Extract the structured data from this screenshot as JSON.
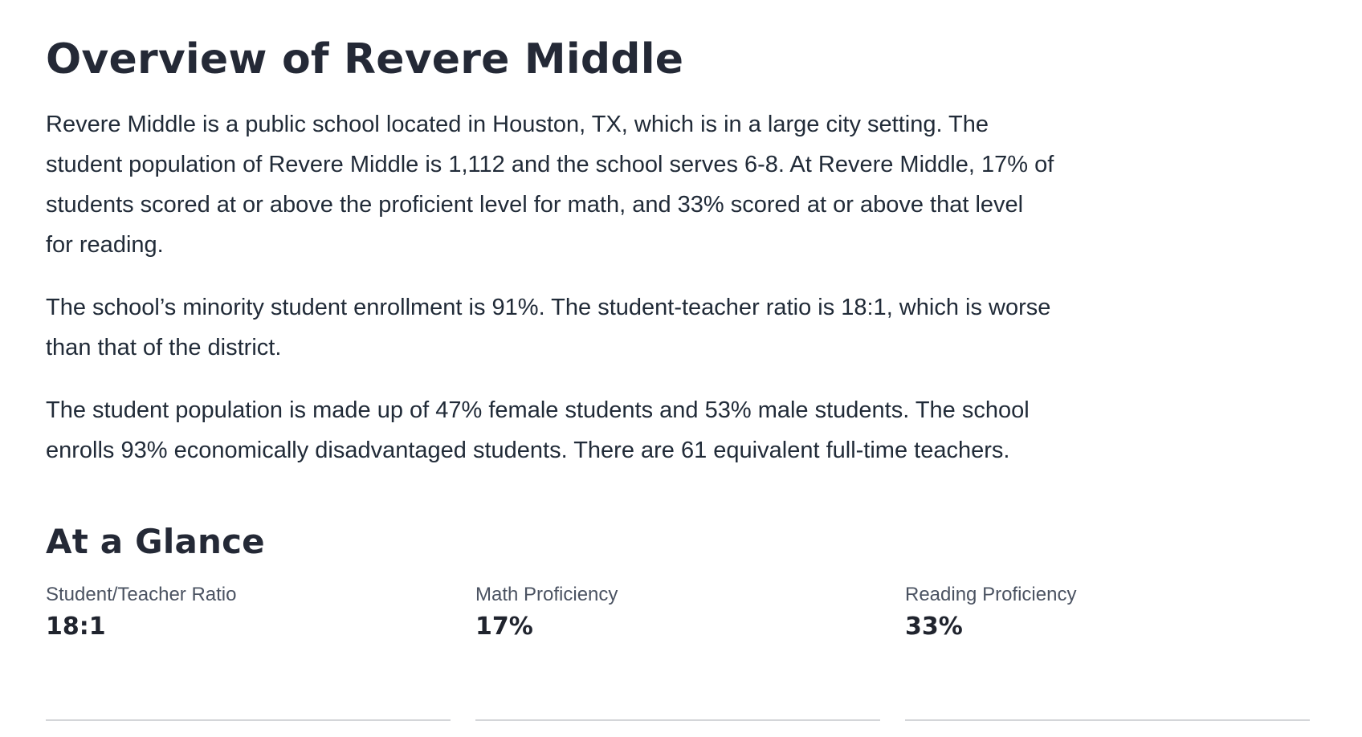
{
  "page": {
    "title": "Overview of Revere Middle",
    "paragraphs": [
      "Revere Middle is a public school located in Houston, TX, which is in a large city setting. The\nstudent population of Revere Middle is 1,112 and the school serves 6-8. At Revere Middle, 17% of\nstudents scored at or above the proficient level for math, and 33% scored at or above that level\nfor reading.",
      "The school’s minority student enrollment is 91%. The student-teacher ratio is 18:1, which is worse\nthan that of the district.",
      "The student population is made up of 47% female students and 53% male students. The school\nenrolls 93% economically disadvantaged students. There are 61 equivalent full-time teachers."
    ],
    "at_a_glance": {
      "heading": "At a Glance",
      "stats": [
        {
          "label": "Student/Teacher Ratio",
          "value": "18:1"
        },
        {
          "label": "Math Proficiency",
          "value": "17%"
        },
        {
          "label": "Reading Proficiency",
          "value": "33%"
        }
      ]
    },
    "colors": {
      "heading_text": "#242936",
      "body_text": "#212b38",
      "label_text": "#4b5362",
      "divider": "#d4d6d9",
      "background": "#ffffff"
    }
  }
}
